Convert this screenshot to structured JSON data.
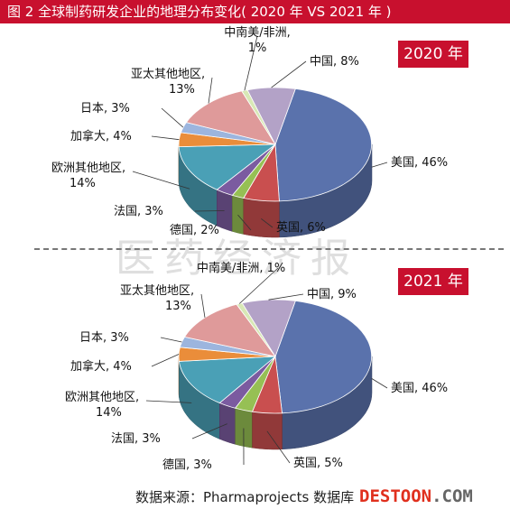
{
  "header": {
    "title": "图 2    全球制药研发企业的地理分布变化( 2020 年 VS  2021 年 )"
  },
  "watermark": "医药经济报",
  "source": "数据来源：Pharmaprojects 数据库",
  "logo": {
    "text": "DESTOON",
    "suffix": ".COM"
  },
  "chart_data": [
    {
      "type": "pie",
      "title": "2020 年",
      "slices": [
        {
          "label": "美国",
          "value": 46,
          "text": "美国, 46%",
          "color": "#5a72ac"
        },
        {
          "label": "英国",
          "value": 6,
          "text": "英国, 6%",
          "color": "#c94f4f"
        },
        {
          "label": "德国",
          "value": 2,
          "text": "德国, 2%",
          "color": "#96c054"
        },
        {
          "label": "法国",
          "value": 3,
          "text": "法国, 3%",
          "color": "#7b5ba0"
        },
        {
          "label": "欧洲其他地区",
          "value": 14,
          "text": [
            "欧洲其他地区,",
            "14%"
          ],
          "color": "#4aa0b6"
        },
        {
          "label": "加拿大",
          "value": 4,
          "text": "加拿大, 4%",
          "color": "#ea8d3a"
        },
        {
          "label": "日本",
          "value": 3,
          "text": "日本, 3%",
          "color": "#9cb5de"
        },
        {
          "label": "亚太其他地区",
          "value": 13,
          "text": [
            "亚太其他地区,",
            "13%"
          ],
          "color": "#df9a9a"
        },
        {
          "label": "中南美/非洲",
          "value": 1,
          "text": [
            "中南美/非洲,",
            "1%"
          ],
          "color": "#d8e8b6"
        },
        {
          "label": "中国",
          "value": 8,
          "text": "中国, 8%",
          "color": "#b3a2c7"
        }
      ]
    },
    {
      "type": "pie",
      "title": "2021 年",
      "slices": [
        {
          "label": "美国",
          "value": 46,
          "text": "美国, 46%",
          "color": "#5a72ac"
        },
        {
          "label": "英国",
          "value": 5,
          "text": "英国, 5%",
          "color": "#c94f4f"
        },
        {
          "label": "德国",
          "value": 3,
          "text": "德国, 3%",
          "color": "#96c054"
        },
        {
          "label": "法国",
          "value": 3,
          "text": "法国, 3%",
          "color": "#7b5ba0"
        },
        {
          "label": "欧洲其他地区",
          "value": 14,
          "text": [
            "欧洲其他地区,",
            "14%"
          ],
          "color": "#4aa0b6"
        },
        {
          "label": "加拿大",
          "value": 4,
          "text": "加拿大, 4%",
          "color": "#ea8d3a"
        },
        {
          "label": "日本",
          "value": 3,
          "text": "日本, 3%",
          "color": "#9cb5de"
        },
        {
          "label": "亚太其他地区",
          "value": 13,
          "text": [
            "亚太其他地区,",
            "13%"
          ],
          "color": "#df9a9a"
        },
        {
          "label": "中南美/非洲",
          "value": 1,
          "text": "中南美/非洲, 1%",
          "color": "#d8e8b6"
        },
        {
          "label": "中国",
          "value": 9,
          "text": "中国, 9%",
          "color": "#b3a2c7"
        }
      ]
    }
  ]
}
